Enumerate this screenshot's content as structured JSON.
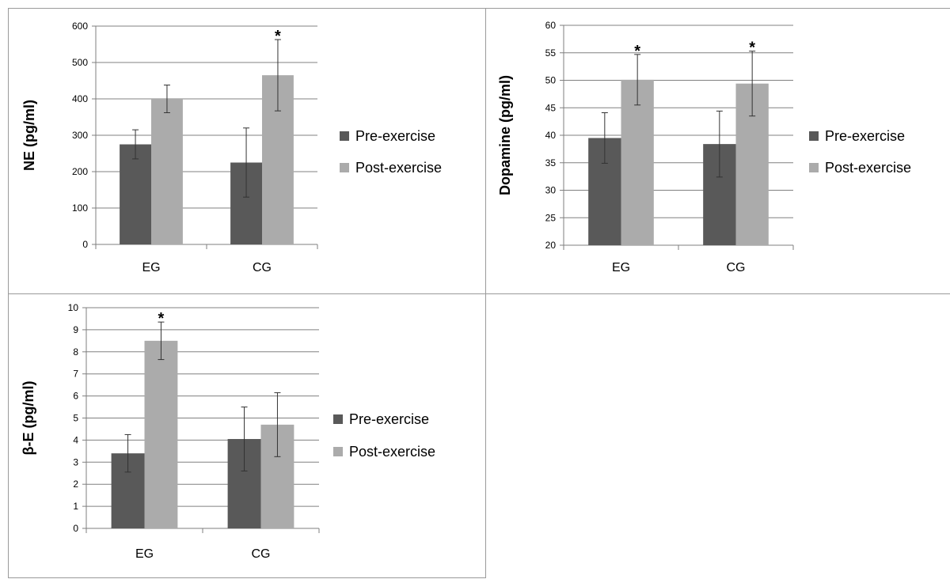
{
  "colors": {
    "pre": "#595959",
    "post": "#ababab",
    "grid": "#808080",
    "axis": "#7f7f7f",
    "error": "#333333"
  },
  "charts": [
    {
      "type": "bar",
      "ylabel": "NE (pg/ml)",
      "categories": [
        "EG",
        "CG"
      ],
      "ylim": [
        0,
        600
      ],
      "yticks": [
        0,
        100,
        200,
        300,
        400,
        500,
        600
      ],
      "grid": true,
      "legend_position": "right",
      "series": [
        {
          "name": "Pre-exercise",
          "values": [
            275,
            225
          ],
          "errors": [
            40,
            95
          ]
        },
        {
          "name": "Post-exercise",
          "values": [
            400,
            465
          ],
          "errors": [
            38,
            98
          ]
        }
      ],
      "annotations": [
        {
          "category": "CG",
          "series": "Post-exercise",
          "text": "*"
        }
      ]
    },
    {
      "type": "bar",
      "ylabel": "Dopamine (pg/ml)",
      "categories": [
        "EG",
        "CG"
      ],
      "ylim": [
        20,
        60
      ],
      "yticks": [
        20,
        25,
        30,
        35,
        40,
        45,
        50,
        55,
        60
      ],
      "grid": true,
      "legend_position": "right",
      "series": [
        {
          "name": "Pre-exercise",
          "values": [
            39.5,
            38.4
          ],
          "errors": [
            4.6,
            6
          ]
        },
        {
          "name": "Post-exercise",
          "values": [
            50.1,
            49.4
          ],
          "errors": [
            4.6,
            5.9
          ]
        }
      ],
      "annotations": [
        {
          "category": "EG",
          "series": "Post-exercise",
          "text": "*"
        },
        {
          "category": "CG",
          "series": "Post-exercise",
          "text": "*"
        }
      ]
    },
    {
      "type": "bar",
      "ylabel": "β-E (pg/ml)",
      "categories": [
        "EG",
        "CG"
      ],
      "ylim": [
        0,
        10
      ],
      "yticks": [
        0,
        1,
        2,
        3,
        4,
        5,
        6,
        7,
        8,
        9,
        10
      ],
      "grid": true,
      "legend_position": "right",
      "series": [
        {
          "name": "Pre-exercise",
          "values": [
            3.4,
            4.05
          ],
          "errors": [
            0.85,
            1.45
          ]
        },
        {
          "name": "Post-exercise",
          "values": [
            8.5,
            4.7
          ],
          "errors": [
            0.85,
            1.45
          ]
        }
      ],
      "annotations": [
        {
          "category": "EG",
          "series": "Post-exercise",
          "text": "*"
        }
      ]
    }
  ]
}
